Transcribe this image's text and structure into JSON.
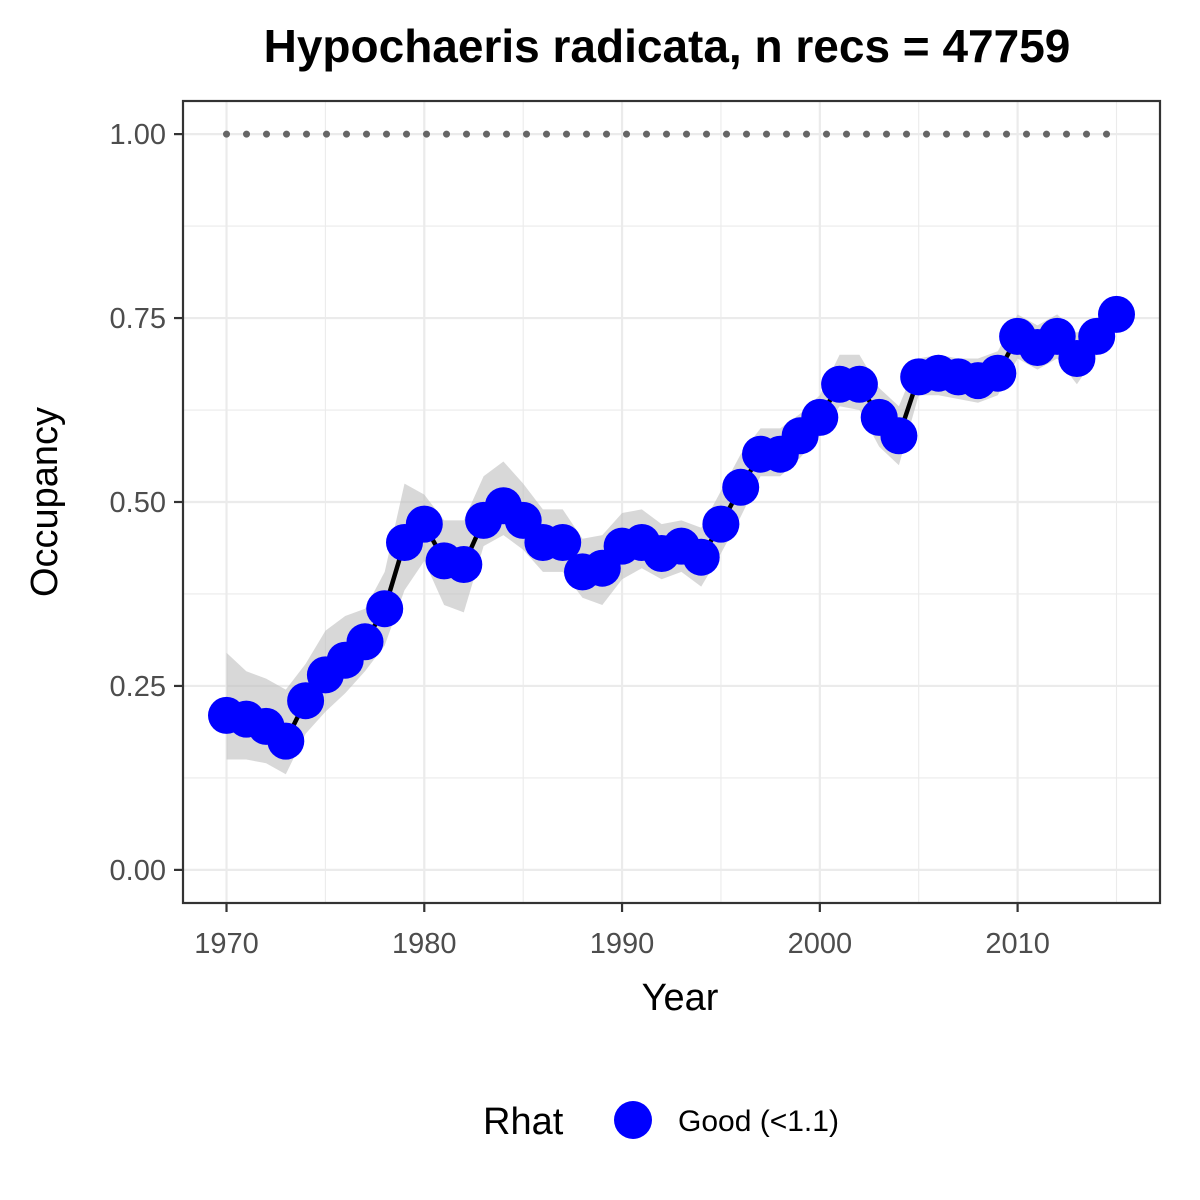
{
  "chart_data": {
    "type": "line",
    "title": "Hypochaeris radicata, n recs = 47759",
    "xlabel": "Year",
    "ylabel": "Occupancy",
    "xlim": [
      1967.8,
      2017.2
    ],
    "ylim": [
      -0.045,
      1.045
    ],
    "x_ticks": [
      1970,
      1980,
      1990,
      2000,
      2010
    ],
    "y_ticks": [
      0.0,
      0.25,
      0.5,
      0.75,
      1.0
    ],
    "y_tick_labels": [
      "0.00",
      "0.25",
      "0.50",
      "0.75",
      "1.00"
    ],
    "grid": true,
    "legend_position": "bottom",
    "legend": {
      "title": "Rhat",
      "entries": [
        {
          "label": "Good (<1.1)",
          "color": "#0000ff"
        }
      ]
    },
    "reference_line": {
      "y": 1.0,
      "style": "dotted",
      "color": "#666666"
    },
    "series": [
      {
        "x": [
          1970,
          1971,
          1972,
          1973,
          1974,
          1975,
          1976,
          1977,
          1978,
          1979,
          1980,
          1981,
          1982,
          1983,
          1984,
          1985,
          1986,
          1987,
          1988,
          1989,
          1990,
          1991,
          1992,
          1993,
          1994,
          1995,
          1996,
          1997,
          1998,
          1999,
          2000,
          2001,
          2002,
          2003,
          2004,
          2005,
          2006,
          2007,
          2008,
          2009,
          2010,
          2011,
          2012,
          2013,
          2014,
          2015
        ],
        "y": [
          0.21,
          0.205,
          0.195,
          0.175,
          0.23,
          0.265,
          0.285,
          0.31,
          0.355,
          0.445,
          0.47,
          0.42,
          0.415,
          0.475,
          0.495,
          0.475,
          0.445,
          0.445,
          0.405,
          0.41,
          0.44,
          0.445,
          0.43,
          0.44,
          0.425,
          0.47,
          0.52,
          0.565,
          0.565,
          0.59,
          0.615,
          0.66,
          0.66,
          0.615,
          0.59,
          0.67,
          0.675,
          0.67,
          0.665,
          0.675,
          0.725,
          0.71,
          0.725,
          0.695,
          0.725,
          0.755
        ],
        "lower": [
          0.15,
          0.15,
          0.145,
          0.13,
          0.185,
          0.215,
          0.24,
          0.27,
          0.305,
          0.38,
          0.42,
          0.36,
          0.35,
          0.44,
          0.455,
          0.435,
          0.405,
          0.405,
          0.37,
          0.36,
          0.395,
          0.41,
          0.395,
          0.405,
          0.385,
          0.43,
          0.48,
          0.535,
          0.535,
          0.56,
          0.59,
          0.63,
          0.625,
          0.575,
          0.55,
          0.645,
          0.645,
          0.64,
          0.635,
          0.645,
          0.695,
          0.68,
          0.695,
          0.66,
          0.7,
          0.735
        ],
        "upper": [
          0.295,
          0.27,
          0.26,
          0.245,
          0.28,
          0.325,
          0.345,
          0.355,
          0.405,
          0.525,
          0.51,
          0.475,
          0.475,
          0.535,
          0.555,
          0.525,
          0.49,
          0.49,
          0.45,
          0.455,
          0.485,
          0.49,
          0.47,
          0.475,
          0.465,
          0.515,
          0.565,
          0.6,
          0.6,
          0.62,
          0.645,
          0.7,
          0.7,
          0.655,
          0.63,
          0.695,
          0.7,
          0.695,
          0.695,
          0.705,
          0.755,
          0.74,
          0.755,
          0.73,
          0.75,
          0.775
        ],
        "color": "#0000ff",
        "line_color": "#000000",
        "band_color": "#bebebe"
      }
    ]
  }
}
